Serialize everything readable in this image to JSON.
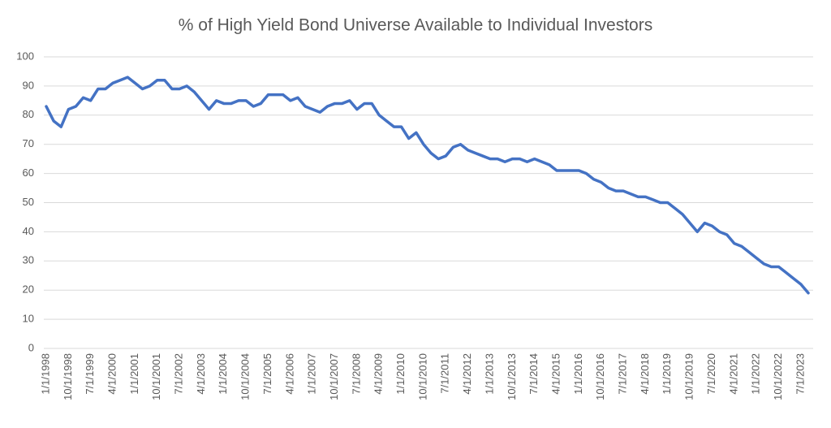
{
  "chart_data": {
    "type": "line",
    "title": "% of High Yield Bond Universe Available to Individual Investors",
    "categories": [
      "1/1/1998",
      null,
      null,
      "10/1/1998",
      null,
      null,
      "7/1/1999",
      null,
      null,
      "4/1/2000",
      null,
      null,
      "1/1/2001",
      null,
      null,
      "10/1/2001",
      null,
      null,
      "7/1/2002",
      null,
      null,
      "4/1/2003",
      null,
      null,
      "1/1/2004",
      null,
      null,
      "10/1/2004",
      null,
      null,
      "7/1/2005",
      null,
      null,
      "4/1/2006",
      null,
      null,
      "1/1/2007",
      null,
      null,
      "10/1/2007",
      null,
      null,
      "7/1/2008",
      null,
      null,
      "4/1/2009",
      null,
      null,
      "1/1/2010",
      null,
      null,
      "10/1/2010",
      null,
      null,
      "7/1/2011",
      null,
      null,
      "4/1/2012",
      null,
      null,
      "1/1/2013",
      null,
      null,
      "10/1/2013",
      null,
      null,
      "7/1/2014",
      null,
      null,
      "4/1/2015",
      null,
      null,
      "1/1/2016",
      null,
      null,
      "10/1/2016",
      null,
      null,
      "7/1/2017",
      null,
      null,
      "4/1/2018",
      null,
      null,
      "1/1/2019",
      null,
      null,
      "10/1/2019",
      null,
      null,
      "7/1/2020",
      null,
      null,
      "4/1/2021",
      null,
      null,
      "1/1/2022",
      null,
      null,
      "10/1/2022",
      null,
      null,
      "7/1/2023",
      null
    ],
    "values": [
      83,
      78,
      76,
      82,
      83,
      86,
      85,
      89,
      89,
      91,
      92,
      93,
      91,
      89,
      90,
      92,
      92,
      89,
      89,
      90,
      88,
      85,
      82,
      85,
      84,
      84,
      85,
      85,
      83,
      84,
      87,
      87,
      87,
      85,
      86,
      83,
      82,
      81,
      83,
      84,
      84,
      85,
      82,
      84,
      84,
      80,
      78,
      76,
      76,
      72,
      74,
      70,
      67,
      65,
      66,
      69,
      70,
      68,
      67,
      66,
      65,
      65,
      64,
      65,
      65,
      64,
      65,
      64,
      63,
      61,
      61,
      61,
      61,
      60,
      58,
      57,
      55,
      54,
      54,
      53,
      52,
      52,
      51,
      50,
      50,
      48,
      46,
      43,
      40,
      43,
      42,
      40,
      39,
      36,
      35,
      33,
      31,
      29,
      28,
      28,
      26,
      24,
      22,
      19
    ],
    "color": "#4472c4",
    "ylim": [
      0,
      100
    ],
    "yticks": [
      0,
      10,
      20,
      30,
      40,
      50,
      60,
      70,
      80,
      90,
      100
    ],
    "grid": true
  }
}
